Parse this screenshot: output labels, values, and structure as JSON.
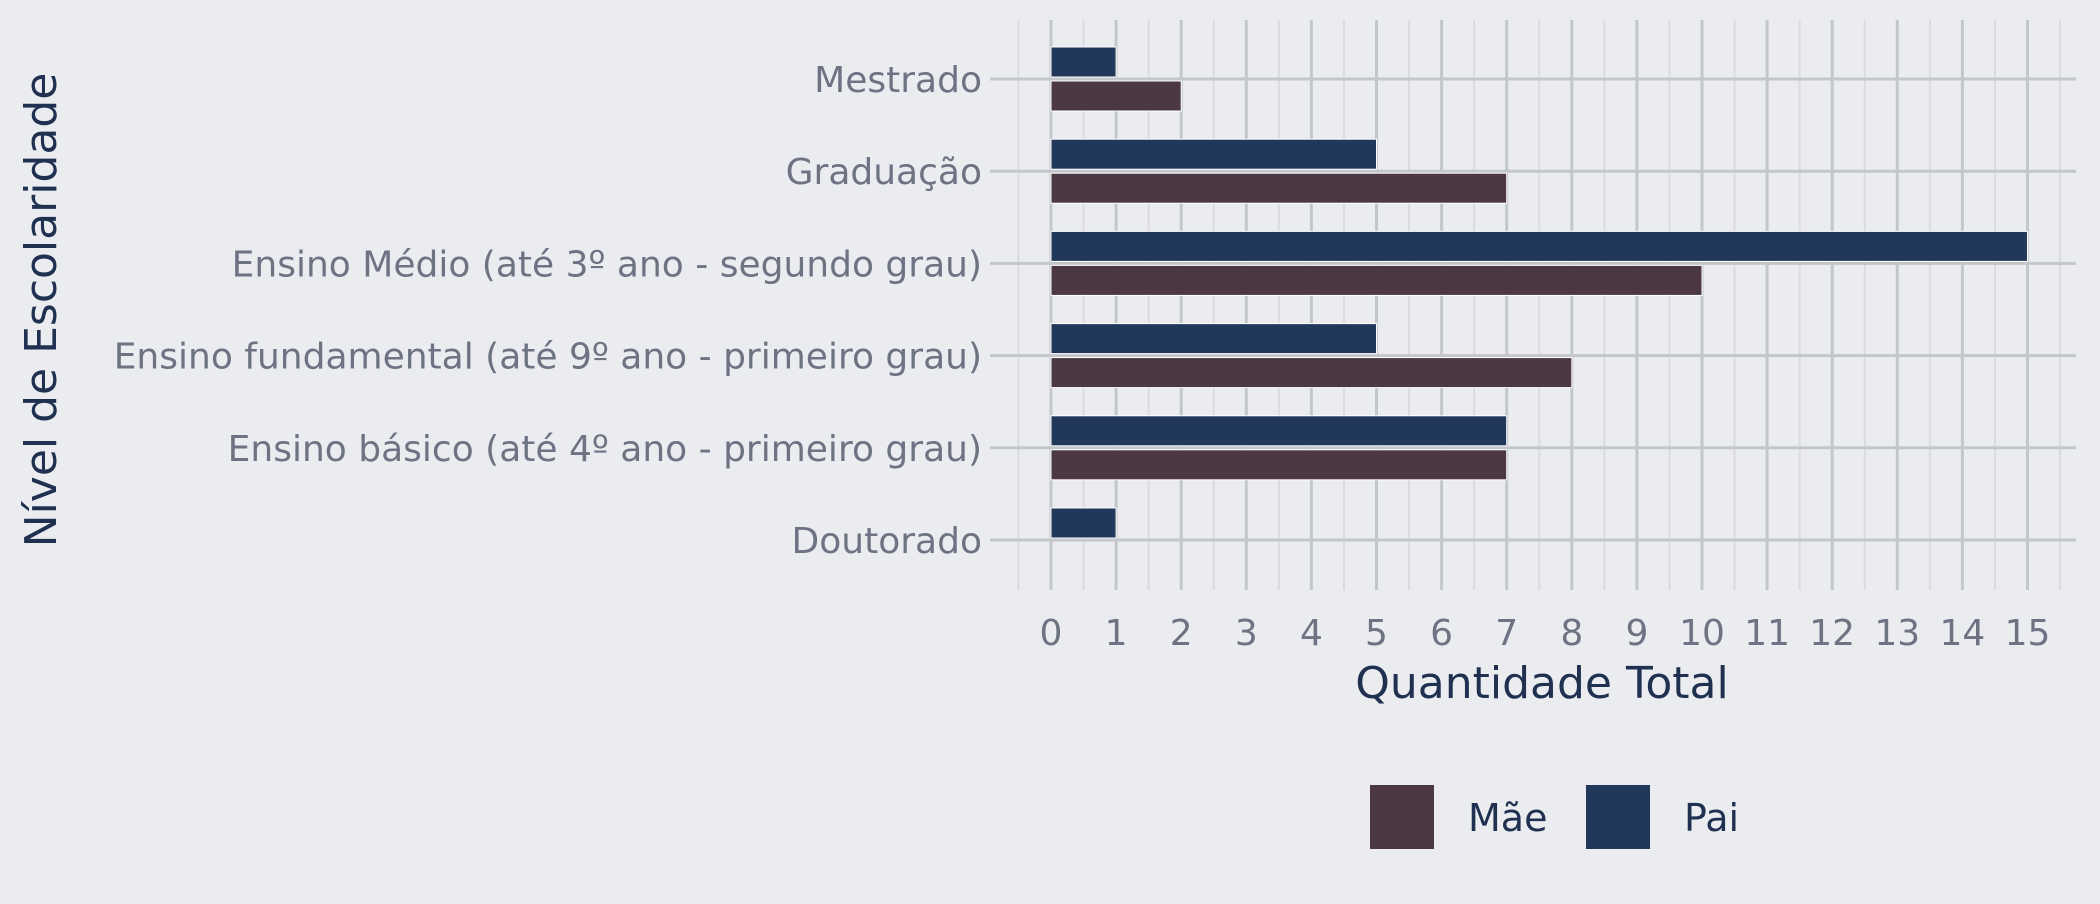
{
  "chart_data": {
    "type": "bar",
    "orientation": "horizontal",
    "categories": [
      "Doutorado",
      "Ensino básico (até 4º ano - primeiro grau)",
      "Ensino fundamental (até 9º ano - primeiro grau)",
      "Ensino Médio (até 3º ano - segundo grau)",
      "Graduação",
      "Mestrado"
    ],
    "series": [
      {
        "name": "Mãe",
        "color": "#4b3844",
        "values": [
          0,
          7,
          8,
          10,
          7,
          2
        ]
      },
      {
        "name": "Pai",
        "color": "#22385b",
        "values": [
          1,
          7,
          5,
          15,
          5,
          1
        ]
      }
    ],
    "xlabel": "Quantidade Total",
    "ylabel": "Nível de Escolaridade",
    "xlim": [
      0,
      15
    ],
    "xticks": [
      "0",
      "1",
      "2",
      "3",
      "4",
      "5",
      "6",
      "7",
      "8",
      "9",
      "10",
      "11",
      "12",
      "13",
      "14",
      "15"
    ],
    "grid": true,
    "legend_position": "bottom",
    "legend_items": [
      "Mãe",
      "Pai"
    ]
  },
  "colors": {
    "background": "#ebecf0",
    "grid_major": "#c3c6cb",
    "grid_minor": "#d9dbe0",
    "tick_text": "#6e7384",
    "title_text": "#1f3050"
  }
}
